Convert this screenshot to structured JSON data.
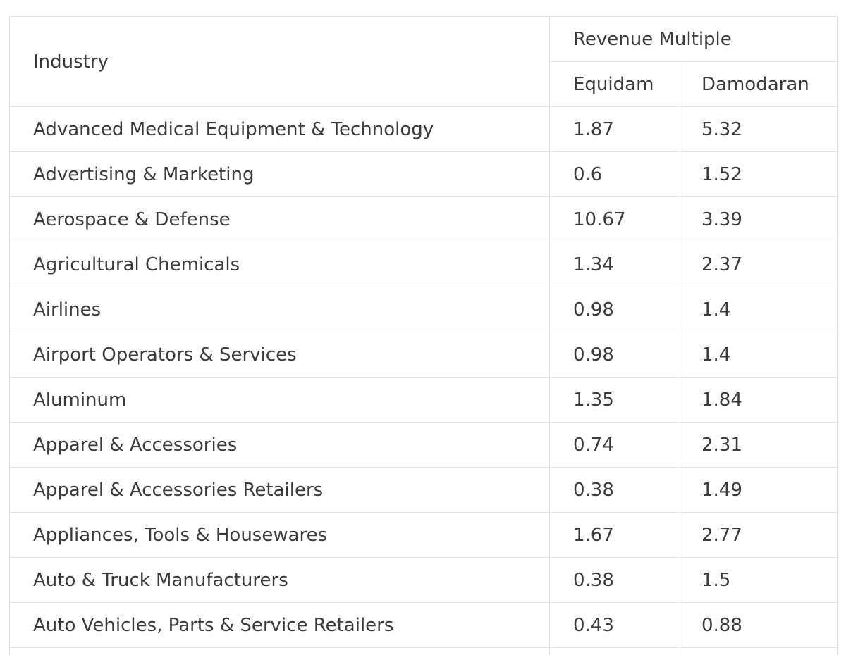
{
  "table": {
    "industry_header": "Industry",
    "group_header": "Revenue Multiple",
    "sub_headers": [
      "Equidam",
      "Damodaran"
    ],
    "rows": [
      {
        "industry": "Advanced Medical Equipment & Technology",
        "equidam": "1.87",
        "damodaran": "5.32"
      },
      {
        "industry": "Advertising & Marketing",
        "equidam": "0.6",
        "damodaran": "1.52"
      },
      {
        "industry": "Aerospace & Defense",
        "equidam": "10.67",
        "damodaran": "3.39"
      },
      {
        "industry": "Agricultural Chemicals",
        "equidam": "1.34",
        "damodaran": "2.37"
      },
      {
        "industry": "Airlines",
        "equidam": "0.98",
        "damodaran": "1.4"
      },
      {
        "industry": "Airport Operators & Services",
        "equidam": "0.98",
        "damodaran": "1.4"
      },
      {
        "industry": "Aluminum",
        "equidam": "1.35",
        "damodaran": "1.84"
      },
      {
        "industry": "Apparel & Accessories",
        "equidam": "0.74",
        "damodaran": "2.31"
      },
      {
        "industry": "Apparel & Accessories Retailers",
        "equidam": "0.38",
        "damodaran": "1.49"
      },
      {
        "industry": "Appliances, Tools & Housewares",
        "equidam": "1.67",
        "damodaran": "2.77"
      },
      {
        "industry": "Auto & Truck Manufacturers",
        "equidam": "0.38",
        "damodaran": "1.5"
      },
      {
        "industry": "Auto Vehicles, Parts & Service Retailers",
        "equidam": "0.43",
        "damodaran": "0.88"
      }
    ]
  }
}
